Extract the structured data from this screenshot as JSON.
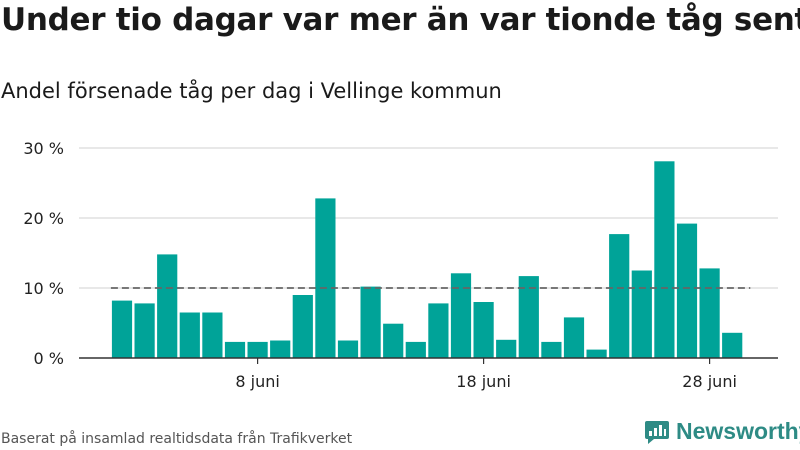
{
  "header": {
    "title": "Under tio dagar var mer än var tionde tåg sent",
    "subtitle": "Andel försenade tåg per dag i Vellinge kommun"
  },
  "footer": {
    "source": "Baserat på insamlad realtidsdata från Trafikverket",
    "brand": "Newsworthy"
  },
  "colors": {
    "bar": "#00a398",
    "reference_line": "#666666",
    "grid": "#d9d9d9",
    "axis": "#333333",
    "brand": "#2e8b85"
  },
  "chart_data": {
    "type": "bar",
    "day_numbers": [
      2,
      3,
      4,
      5,
      6,
      7,
      8,
      9,
      10,
      11,
      12,
      13,
      14,
      15,
      16,
      17,
      18,
      19,
      20,
      21,
      22,
      23,
      24,
      25,
      26,
      27,
      28,
      29
    ],
    "month": "juni",
    "values": [
      8.2,
      7.8,
      14.8,
      6.5,
      6.5,
      2.3,
      2.3,
      2.5,
      9.0,
      22.8,
      2.5,
      10.2,
      4.9,
      2.3,
      7.8,
      12.1,
      8.0,
      2.6,
      11.7,
      2.3,
      5.8,
      1.2,
      17.7,
      12.5,
      28.1,
      19.2,
      12.8,
      3.6
    ],
    "reference_line": 10,
    "ylim": [
      0,
      30
    ],
    "yticks": [
      0,
      10,
      20,
      30
    ],
    "ytick_labels": [
      "0 %",
      "10 %",
      "20 %",
      "30 %"
    ],
    "xticks": [
      8,
      18,
      28
    ],
    "xtick_labels": [
      "8 juni",
      "18 juni",
      "28 juni"
    ],
    "grid": true,
    "legend": "none"
  }
}
